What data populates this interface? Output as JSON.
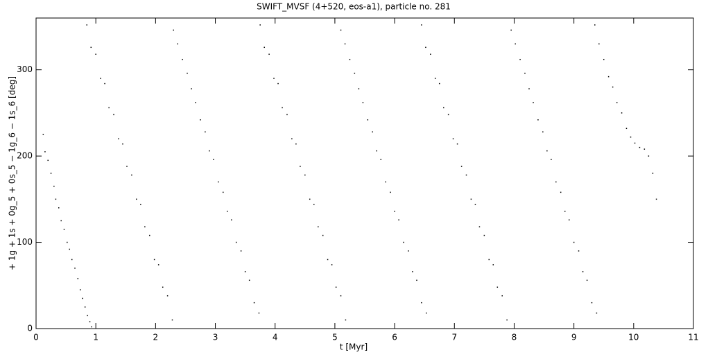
{
  "chart_data": {
    "type": "scatter",
    "title": "SWIFT_MVSF (4+520, eos-a1), particle no. 281",
    "x_label": "t [Myr]",
    "y_label": "+ 1g + 1s + 0g_5 + 0s_5 − 1g_6 − 1s_6 [deg]",
    "color": "#000000",
    "xlim": [
      0,
      11
    ],
    "xticks": [
      0,
      1,
      2,
      3,
      4,
      5,
      6,
      7,
      8,
      9,
      10,
      11
    ],
    "ylim": [
      0,
      360
    ],
    "yticks": [
      0,
      100,
      200,
      300
    ],
    "x": [
      0.12,
      0.15,
      0.2,
      0.25,
      0.3,
      0.33,
      0.38,
      0.42,
      0.47,
      0.52,
      0.56,
      0.6,
      0.65,
      0.7,
      0.74,
      0.78,
      0.82,
      0.86,
      0.9,
      0.93,
      0.85,
      0.92,
      1.0,
      1.08,
      1.15,
      1.22,
      1.3,
      1.38,
      1.45,
      1.52,
      1.6,
      1.68,
      1.75,
      1.82,
      1.9,
      1.98,
      2.05,
      2.12,
      2.2,
      2.28,
      2.3,
      2.37,
      2.45,
      2.53,
      2.6,
      2.67,
      2.75,
      2.83,
      2.9,
      2.97,
      3.05,
      3.13,
      3.2,
      3.27,
      3.35,
      3.43,
      3.5,
      3.57,
      3.65,
      3.73,
      3.75,
      3.82,
      3.9,
      3.98,
      4.05,
      4.12,
      4.2,
      4.28,
      4.35,
      4.42,
      4.5,
      4.58,
      4.65,
      4.72,
      4.8,
      4.88,
      4.95,
      5.02,
      5.1,
      5.18,
      5.1,
      5.17,
      5.25,
      5.33,
      5.4,
      5.47,
      5.55,
      5.63,
      5.7,
      5.77,
      5.85,
      5.93,
      6.0,
      6.07,
      6.15,
      6.23,
      6.3,
      6.37,
      6.45,
      6.53,
      6.45,
      6.52,
      6.6,
      6.68,
      6.75,
      6.82,
      6.9,
      6.98,
      7.05,
      7.12,
      7.2,
      7.28,
      7.35,
      7.42,
      7.5,
      7.58,
      7.65,
      7.72,
      7.8,
      7.88,
      7.95,
      8.02,
      8.1,
      8.18,
      8.25,
      8.32,
      8.4,
      8.48,
      8.55,
      8.62,
      8.7,
      8.78,
      8.85,
      8.92,
      9.0,
      9.08,
      9.15,
      9.22,
      9.3,
      9.38,
      9.35,
      9.42,
      9.5,
      9.58,
      9.65,
      9.72,
      9.8,
      9.88,
      9.95,
      10.02,
      10.1,
      10.18,
      10.25,
      10.32,
      10.38
    ],
    "y": [
      225,
      205,
      195,
      180,
      165,
      150,
      140,
      125,
      115,
      100,
      92,
      80,
      70,
      58,
      45,
      35,
      25,
      15,
      8,
      2,
      352,
      326,
      318,
      290,
      284,
      256,
      248,
      220,
      214,
      188,
      178,
      150,
      144,
      118,
      108,
      80,
      74,
      48,
      38,
      10,
      346,
      330,
      312,
      296,
      278,
      262,
      242,
      228,
      206,
      196,
      170,
      158,
      136,
      126,
      100,
      90,
      66,
      56,
      30,
      18,
      352,
      326,
      318,
      290,
      284,
      256,
      248,
      220,
      214,
      188,
      178,
      150,
      144,
      118,
      108,
      80,
      74,
      48,
      38,
      10,
      346,
      330,
      312,
      296,
      278,
      262,
      242,
      228,
      206,
      196,
      170,
      158,
      136,
      126,
      100,
      90,
      66,
      56,
      30,
      18,
      352,
      326,
      318,
      290,
      284,
      256,
      248,
      220,
      214,
      188,
      178,
      150,
      144,
      118,
      108,
      80,
      74,
      48,
      38,
      10,
      346,
      330,
      312,
      296,
      278,
      262,
      242,
      228,
      206,
      196,
      170,
      158,
      136,
      126,
      100,
      90,
      66,
      56,
      30,
      18,
      352,
      330,
      312,
      292,
      280,
      262,
      250,
      232,
      222,
      215,
      210,
      208,
      200,
      180,
      150
    ]
  }
}
